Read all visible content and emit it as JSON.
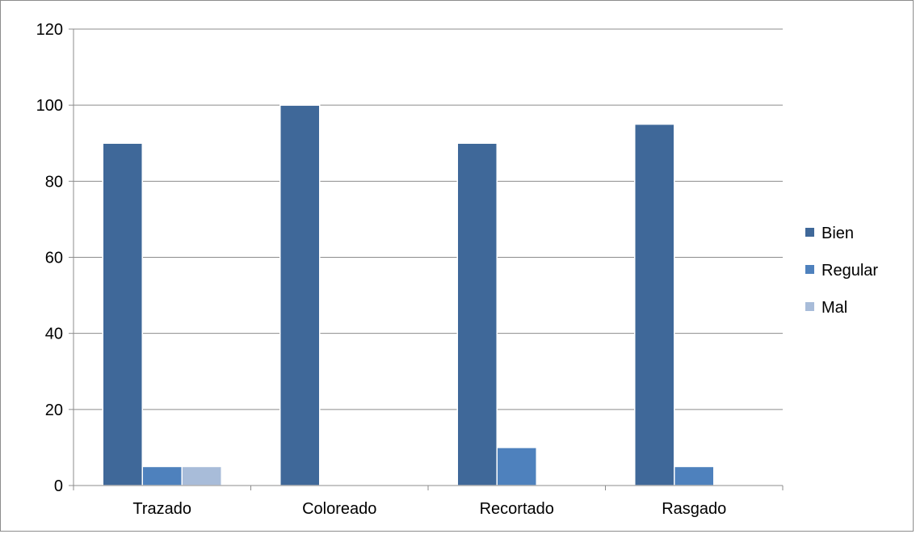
{
  "chart_data": {
    "type": "bar",
    "title": "",
    "xlabel": "",
    "ylabel": "",
    "categories": [
      "Trazado",
      "Coloreado",
      "Recortado",
      "Rasgado"
    ],
    "series": [
      {
        "name": "Bien",
        "color": "#3F6899",
        "values": [
          90,
          100,
          90,
          95
        ]
      },
      {
        "name": "Regular",
        "color": "#4E81BD",
        "values": [
          5,
          0,
          10,
          5
        ]
      },
      {
        "name": "Mal",
        "color": "#A8BCD9",
        "values": [
          5,
          0,
          0,
          0
        ]
      }
    ],
    "ylim": [
      0,
      120
    ],
    "yticks": [
      0,
      20,
      40,
      60,
      80,
      100,
      120
    ],
    "grid": true,
    "legend_position": "right"
  }
}
